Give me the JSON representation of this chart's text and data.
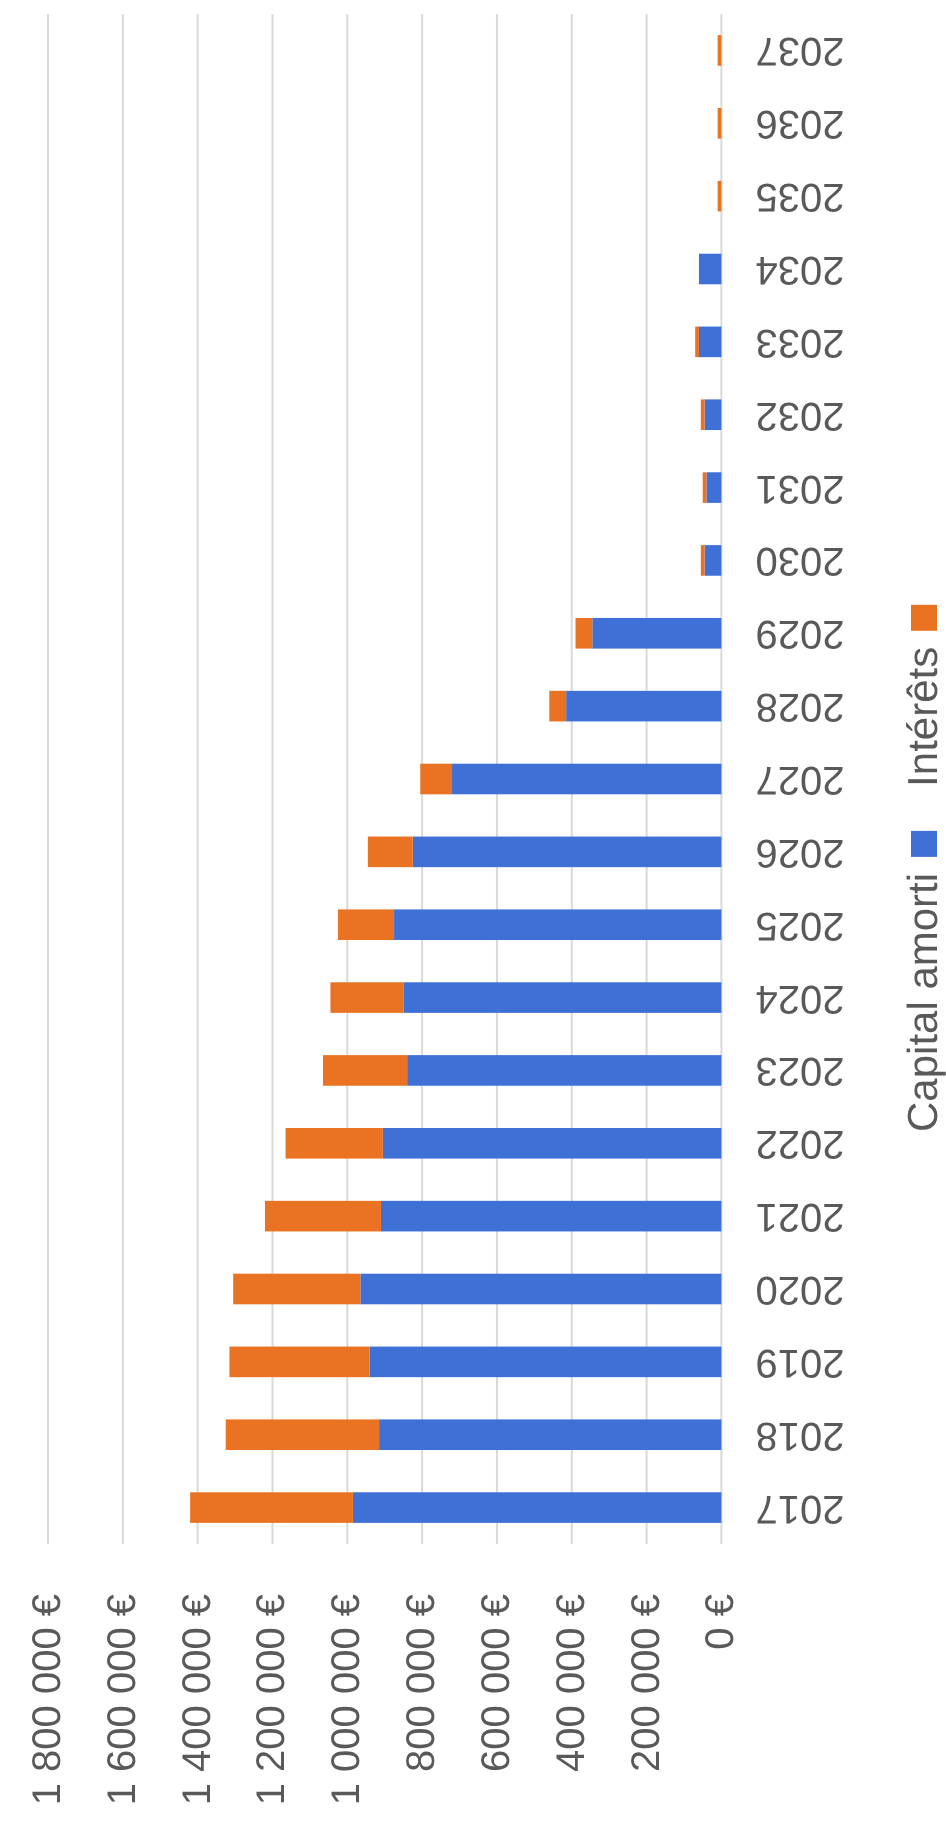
{
  "chart_data": {
    "type": "bar",
    "orientation": "horizontal",
    "stacked": true,
    "categories": [
      "2037",
      "2036",
      "2035",
      "2034",
      "2033",
      "2032",
      "2031",
      "2030",
      "2029",
      "2028",
      "2027",
      "2026",
      "2025",
      "2024",
      "2023",
      "2022",
      "2021",
      "2020",
      "2019",
      "2018",
      "2017"
    ],
    "series": [
      {
        "name": "Capital amorti",
        "color": "#3f70d6",
        "values": [
          null,
          null,
          null,
          60000,
          60000,
          45000,
          40000,
          45000,
          345000,
          415000,
          720000,
          825000,
          875000,
          850000,
          840000,
          905000,
          910000,
          965000,
          940000,
          915000,
          985000
        ]
      },
      {
        "name": "Intérêts",
        "color": "#e97322",
        "values": [
          10000,
          10000,
          10000,
          null,
          10000,
          10000,
          10000,
          10000,
          45000,
          45000,
          85000,
          120000,
          150000,
          195000,
          225000,
          260000,
          310000,
          340000,
          375000,
          410000,
          435000
        ]
      }
    ],
    "xlim": [
      1800000,
      0
    ],
    "xticks": [
      {
        "value": 0,
        "label": "0 €"
      },
      {
        "value": 200000,
        "label": "200 000 €"
      },
      {
        "value": 400000,
        "label": "400 000 €"
      },
      {
        "value": 600000,
        "label": "600 000 €"
      },
      {
        "value": 800000,
        "label": "800 000 €"
      },
      {
        "value": 1000000,
        "label": "1 000 000 €"
      },
      {
        "value": 1200000,
        "label": "1 200 000 €"
      },
      {
        "value": 1400000,
        "label": "1 400 000 €"
      },
      {
        "value": 1600000,
        "label": "1 600 000 €"
      },
      {
        "value": 1800000,
        "label": "1 800 000 €"
      }
    ],
    "grid": "x",
    "legend": "right"
  }
}
